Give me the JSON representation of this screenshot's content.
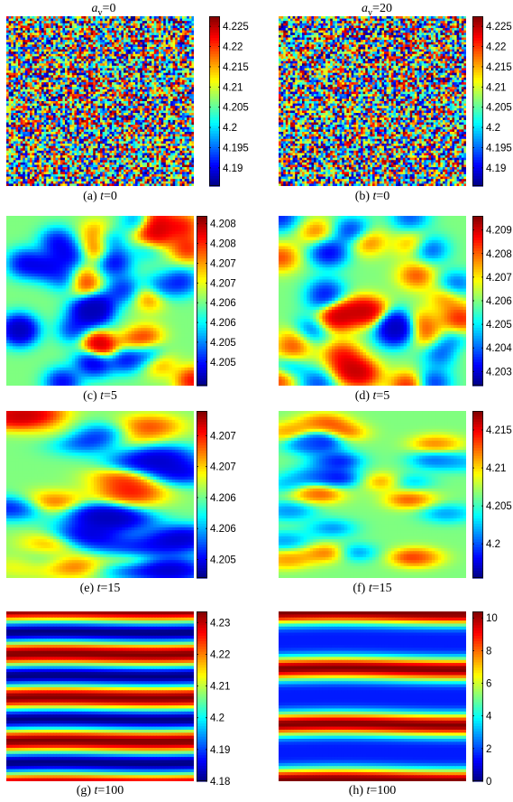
{
  "column_titles": [
    {
      "symbol": "a",
      "subscript": "v",
      "value": "=0"
    },
    {
      "symbol": "a",
      "subscript": "v",
      "value": "=20"
    }
  ],
  "colormap": "jet",
  "chart_data": [
    {
      "type": "heatmap",
      "pattern": "noise",
      "caption": {
        "label": "(a) ",
        "var": "t",
        "value": "=0"
      },
      "clim": [
        4.1855,
        4.2275
      ],
      "ticks": [
        "4.19",
        "4.195",
        "4.2",
        "4.205",
        "4.21",
        "4.215",
        "4.22",
        "4.225"
      ],
      "tick_values": [
        4.19,
        4.195,
        4.2,
        4.205,
        4.21,
        4.215,
        4.22,
        4.225
      ]
    },
    {
      "type": "heatmap",
      "pattern": "noise",
      "caption": {
        "label": "(b) ",
        "var": "t",
        "value": "=0"
      },
      "clim": [
        4.1855,
        4.2275
      ],
      "ticks": [
        "4.19",
        "4.195",
        "4.2",
        "4.205",
        "4.21",
        "4.215",
        "4.22",
        "4.225"
      ],
      "tick_values": [
        4.19,
        4.195,
        4.2,
        4.205,
        4.21,
        4.215,
        4.22,
        4.225
      ]
    },
    {
      "type": "heatmap",
      "pattern": "blobs",
      "caption": {
        "label": "(c) ",
        "var": "t",
        "value": "=5"
      },
      "clim": [
        4.2044,
        4.2087
      ],
      "ticks": [
        "4.205",
        "4.2055",
        "4.206",
        "4.2065",
        "4.207",
        "4.2075",
        "4.208",
        "4.2085"
      ],
      "tick_values": [
        4.205,
        4.2055,
        4.206,
        4.2065,
        4.207,
        4.2075,
        4.208,
        4.2085
      ]
    },
    {
      "type": "heatmap",
      "pattern": "blobs2",
      "caption": {
        "label": "(d) ",
        "var": "t",
        "value": "=5"
      },
      "clim": [
        4.2024,
        4.2096
      ],
      "ticks": [
        "4.203",
        "4.204",
        "4.205",
        "4.206",
        "4.207",
        "4.208",
        "4.209"
      ],
      "tick_values": [
        4.203,
        4.204,
        4.205,
        4.206,
        4.207,
        4.208,
        4.209
      ]
    },
    {
      "type": "heatmap",
      "pattern": "elong",
      "caption": {
        "label": "(e) ",
        "var": "t",
        "value": "=15"
      },
      "clim": [
        4.2052,
        4.2079
      ],
      "ticks": [
        "4.2055",
        "4.206",
        "4.2065",
        "4.207",
        "4.2075"
      ],
      "tick_values": [
        4.2055,
        4.206,
        4.2065,
        4.207,
        4.2075
      ]
    },
    {
      "type": "heatmap",
      "pattern": "spots",
      "caption": {
        "label": "(f) ",
        "var": "t",
        "value": "=15"
      },
      "clim": [
        4.1955,
        4.2175
      ],
      "ticks": [
        "4.2",
        "4.205",
        "4.21",
        "4.215"
      ],
      "tick_values": [
        4.2,
        4.205,
        4.21,
        4.215
      ]
    },
    {
      "type": "heatmap",
      "pattern": "stripes",
      "caption": {
        "label": "(g) ",
        "var": "t",
        "value": "=100"
      },
      "clim": [
        4.18,
        4.2335
      ],
      "ticks": [
        "4.18",
        "4.19",
        "4.2",
        "4.21",
        "4.22",
        "4.23"
      ],
      "tick_values": [
        4.18,
        4.19,
        4.2,
        4.21,
        4.22,
        4.23
      ]
    },
    {
      "type": "heatmap",
      "pattern": "stripes2",
      "caption": {
        "label": "(h) ",
        "var": "t",
        "value": "=100"
      },
      "clim": [
        0,
        10.4
      ],
      "ticks": [
        "0",
        "2",
        "4",
        "6",
        "8",
        "10"
      ],
      "tick_values": [
        0,
        2,
        4,
        6,
        8,
        10
      ]
    }
  ]
}
